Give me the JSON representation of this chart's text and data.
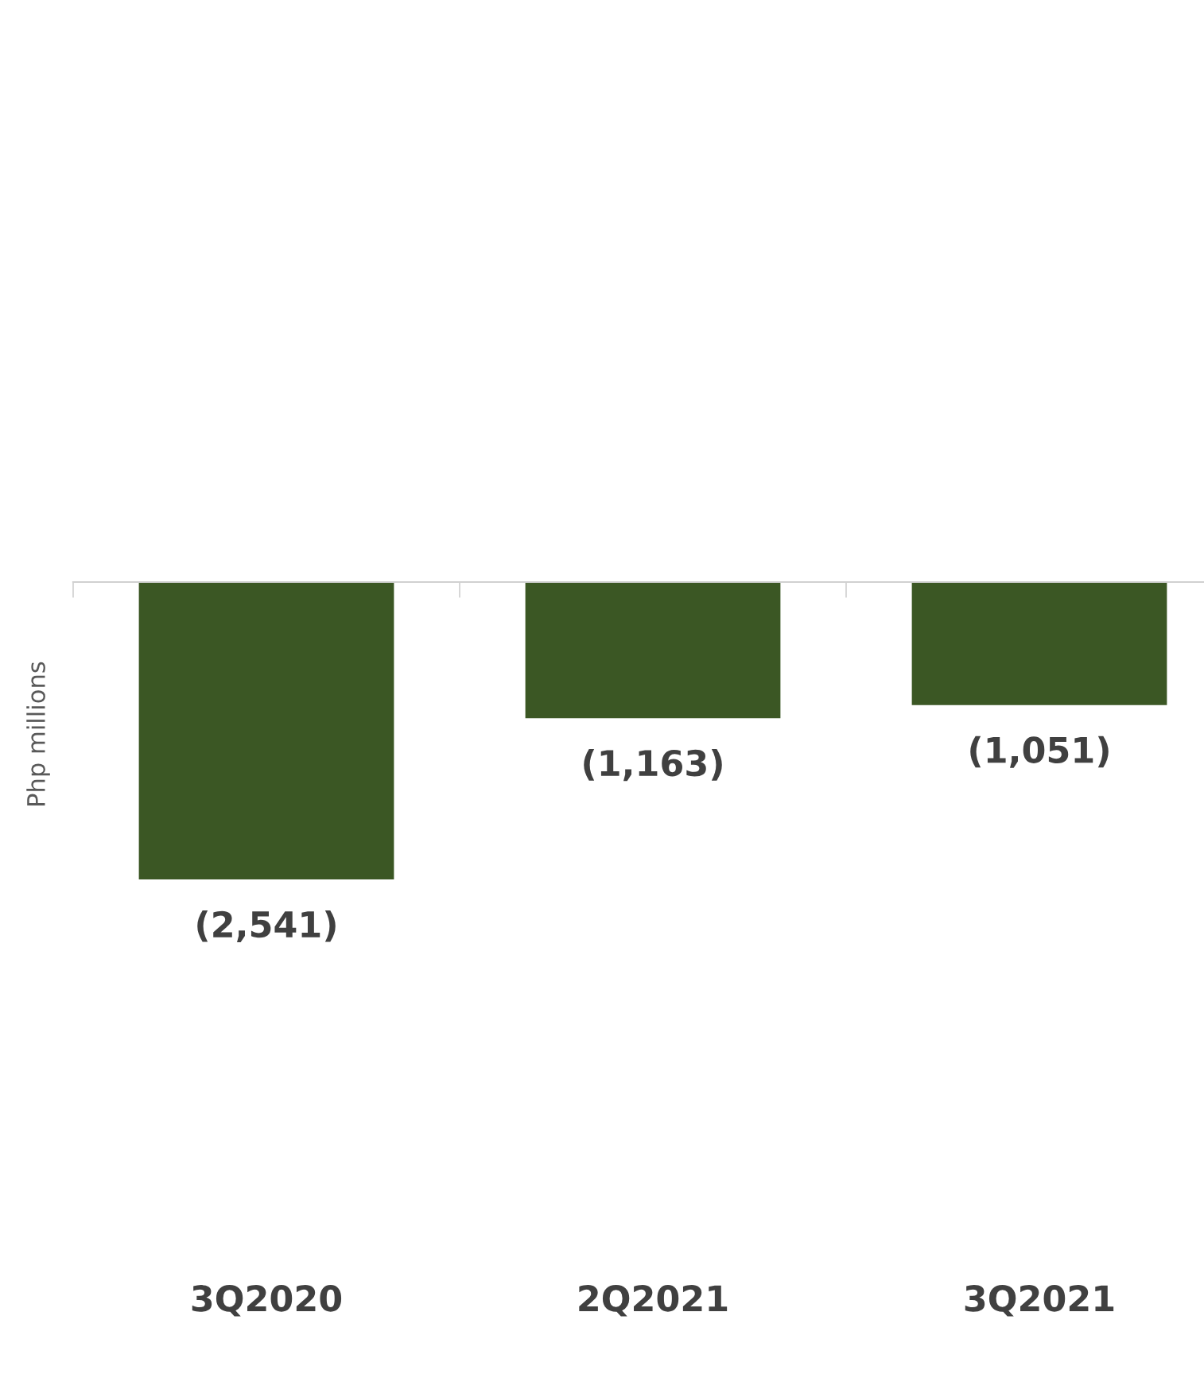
{
  "chart_data": {
    "type": "bar",
    "ylabel": "Php millions",
    "categories": [
      "3Q2020",
      "2Q2021",
      "3Q2021"
    ],
    "values": [
      -2541,
      -1163,
      -1051
    ],
    "value_labels": [
      "(2,541)",
      "(1,163)",
      "(1,051)"
    ],
    "color": "#3b5724",
    "tick_labels": "x",
    "grid": false,
    "legend": false
  }
}
